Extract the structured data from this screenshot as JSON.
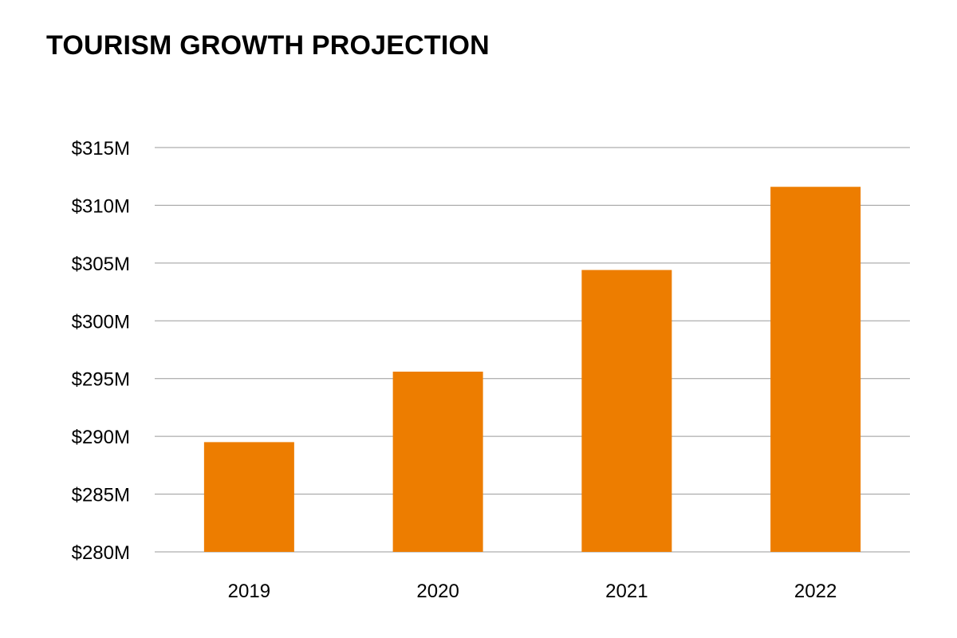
{
  "chart_data": {
    "type": "bar",
    "title": "TOURISM GROWTH PROJECTION",
    "xlabel": "",
    "ylabel": "",
    "categories": [
      "2019",
      "2020",
      "2021",
      "2022"
    ],
    "values": [
      289.5,
      295.6,
      304.4,
      311.6
    ],
    "unit": "$M",
    "ylim": [
      280,
      315
    ],
    "y_ticks": [
      280,
      285,
      290,
      295,
      300,
      305,
      310,
      315
    ],
    "y_tick_labels": [
      "$280M",
      "$285M",
      "$290M",
      "$295M",
      "$300M",
      "$305M",
      "$310M",
      "$315M"
    ],
    "grid": true,
    "legend": "none",
    "colors": {
      "bar": "#ED7D00",
      "grid": "#9A9A9A",
      "text": "#000000"
    }
  }
}
